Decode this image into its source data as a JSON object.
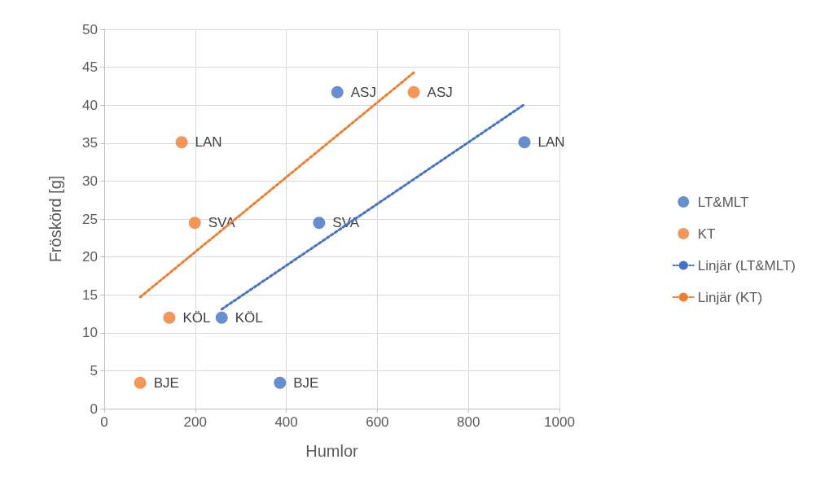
{
  "chart_data": {
    "type": "scatter",
    "xlabel": "Humlor",
    "ylabel": "Fröskörd [g]",
    "xlim": [
      0,
      1000
    ],
    "xticks": [
      0,
      200,
      400,
      600,
      800,
      1000
    ],
    "ylim": [
      0,
      50
    ],
    "yticks": [
      0,
      5,
      10,
      15,
      20,
      25,
      30,
      35,
      40,
      45,
      50
    ],
    "grid": true,
    "legend": "right",
    "marker": "circle",
    "series": [
      {
        "name": "LT&MLT",
        "color": "#4472c4",
        "x": [
          512,
          923,
          472,
          258,
          386
        ],
        "values": [
          41.7,
          35.1,
          24.5,
          12.0,
          3.4
        ]
      },
      {
        "name": "KT",
        "color": "#ed7d31",
        "x": [
          680,
          170,
          199,
          143,
          79
        ],
        "values": [
          41.7,
          35.1,
          24.5,
          12.0,
          3.4
        ]
      },
      {
        "name": "Linjär (LT&MLT)",
        "type": "line",
        "color": "#4472c4",
        "marker": "none",
        "line_style": "dotted",
        "x": [
          258,
          923
        ],
        "values": [
          13.1,
          40.1
        ]
      },
      {
        "name": "Linjär (KT)",
        "type": "line",
        "color": "#ed7d31",
        "marker": "none",
        "line_style": "dotted",
        "x": [
          79,
          680
        ],
        "values": [
          14.7,
          44.3
        ]
      }
    ],
    "annotations": [
      {
        "text": "ASJ",
        "x": 512,
        "y": 41.7
      },
      {
        "text": "LAN",
        "x": 923,
        "y": 35.1
      },
      {
        "text": "SVA",
        "x": 472,
        "y": 24.5
      },
      {
        "text": "KÖL",
        "x": 258,
        "y": 12.0
      },
      {
        "text": "BJE",
        "x": 386,
        "y": 3.4
      },
      {
        "text": "ASJ",
        "x": 680,
        "y": 41.7
      },
      {
        "text": "LAN",
        "x": 170,
        "y": 35.1
      },
      {
        "text": "SVA",
        "x": 199,
        "y": 24.5
      },
      {
        "text": "KÖL",
        "x": 143,
        "y": 12.0
      },
      {
        "text": "BJE",
        "x": 79,
        "y": 3.4
      }
    ]
  }
}
